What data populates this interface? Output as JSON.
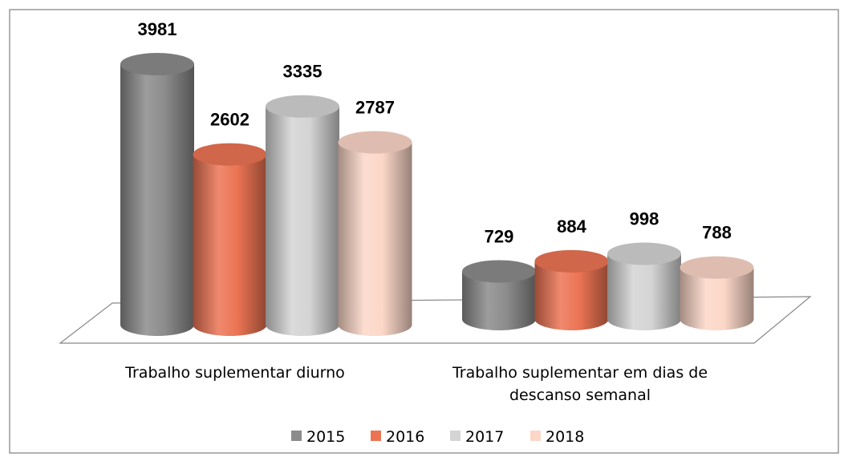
{
  "chart_data": {
    "type": "bar",
    "categories": [
      "Trabalho suplementar diurno",
      "Trabalho suplementar em dias de descanso semanal"
    ],
    "series": [
      {
        "name": "2015",
        "color": "#8c8c8c",
        "values": [
          3981,
          729
        ]
      },
      {
        "name": "2016",
        "color": "#ec7454",
        "values": [
          2602,
          884
        ]
      },
      {
        "name": "2017",
        "color": "#d4d4d4",
        "values": [
          3335,
          998
        ]
      },
      {
        "name": "2018",
        "color": "#fcd7c8",
        "values": [
          2787,
          788
        ]
      }
    ],
    "legend": "bottom"
  }
}
